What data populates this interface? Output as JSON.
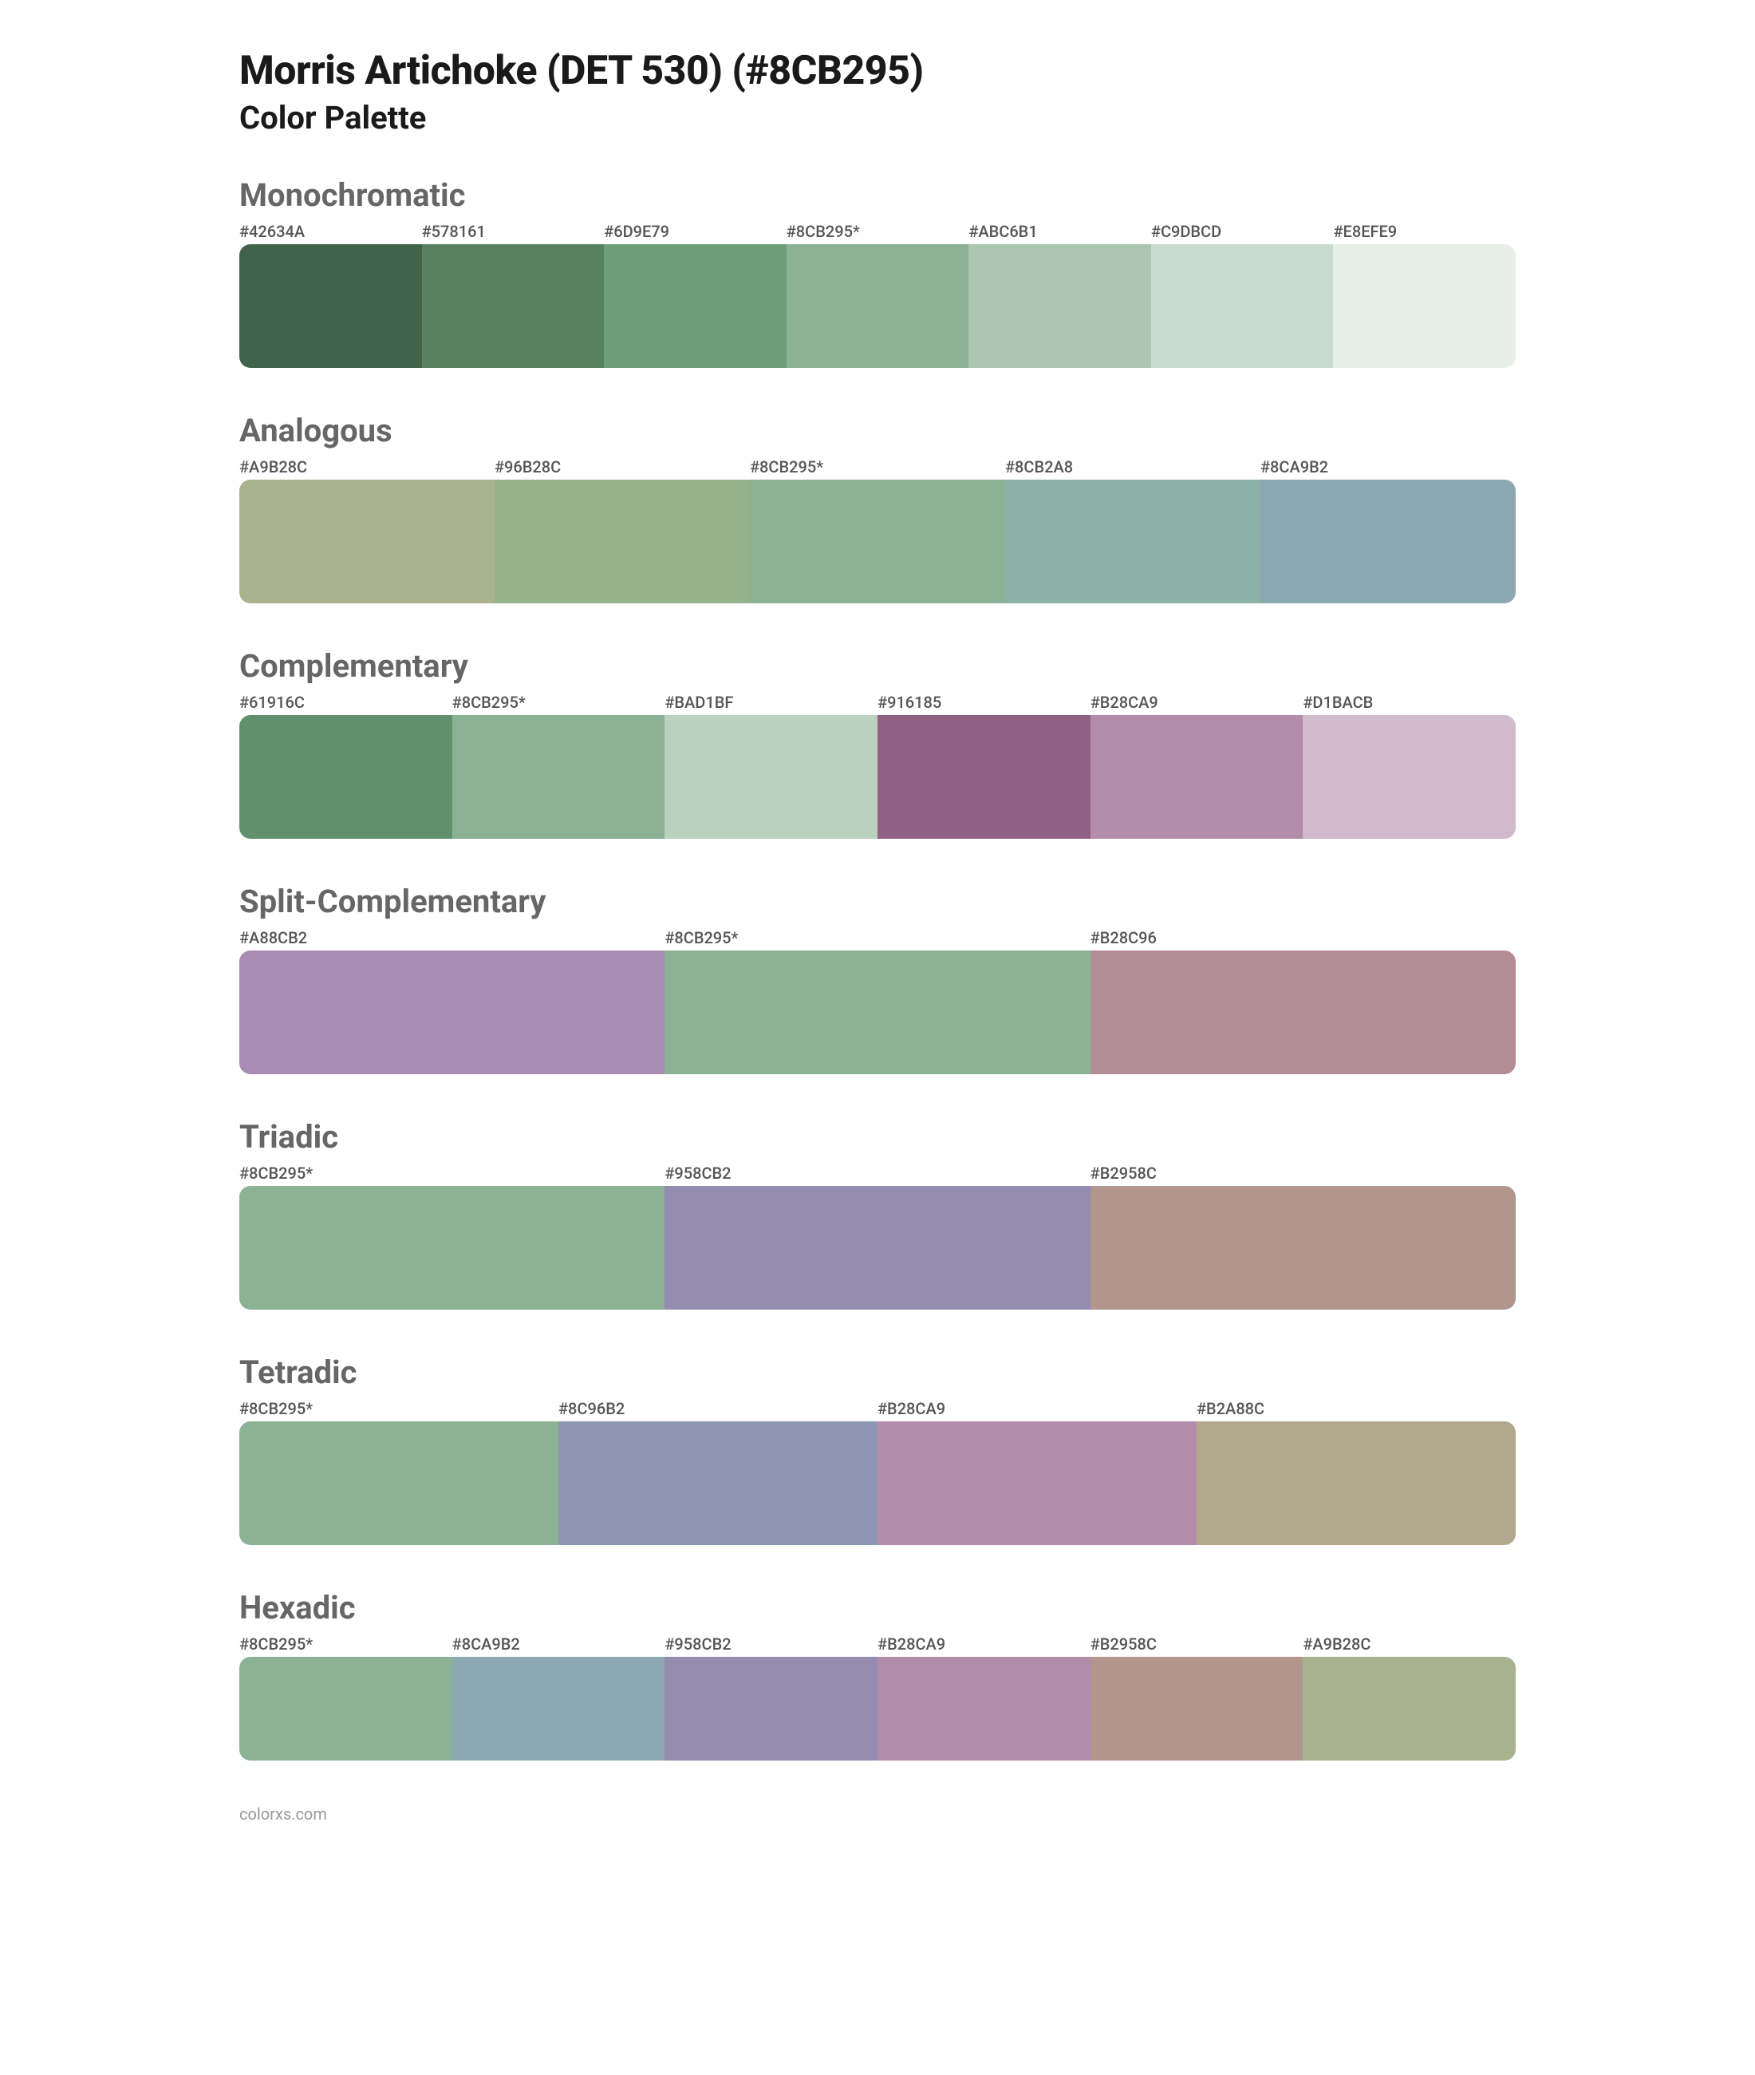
{
  "header": {
    "title": "Morris Artichoke (DET 530) (#8CB295)",
    "subtitle": "Color Palette"
  },
  "sections": [
    {
      "name": "Monochromatic",
      "swatch_height": 155,
      "colors": [
        {
          "label": "#42634A",
          "hex": "#42634A"
        },
        {
          "label": "#578161",
          "hex": "#578161"
        },
        {
          "label": "#6D9E79",
          "hex": "#6D9E79"
        },
        {
          "label": "#8CB295*",
          "hex": "#8CB295"
        },
        {
          "label": "#ABC6B1",
          "hex": "#ABC6B1"
        },
        {
          "label": "#C9DBCD",
          "hex": "#C9DBCD"
        },
        {
          "label": "#E8EFE9",
          "hex": "#E8EFE9"
        }
      ]
    },
    {
      "name": "Analogous",
      "swatch_height": 155,
      "colors": [
        {
          "label": "#A9B28C",
          "hex": "#A9B28C"
        },
        {
          "label": "#96B28C",
          "hex": "#96B28C"
        },
        {
          "label": "#8CB295*",
          "hex": "#8CB295"
        },
        {
          "label": "#8CB2A8",
          "hex": "#8CB2A8"
        },
        {
          "label": "#8CA9B2",
          "hex": "#8CA9B2"
        }
      ]
    },
    {
      "name": "Complementary",
      "swatch_height": 155,
      "colors": [
        {
          "label": "#61916C",
          "hex": "#61916C"
        },
        {
          "label": "#8CB295*",
          "hex": "#8CB295"
        },
        {
          "label": "#BAD1BF",
          "hex": "#BAD1BF"
        },
        {
          "label": "#916185",
          "hex": "#916185"
        },
        {
          "label": "#B28CA9",
          "hex": "#B28CA9"
        },
        {
          "label": "#D1BACB",
          "hex": "#D1BACB"
        }
      ]
    },
    {
      "name": "Split-Complementary",
      "swatch_height": 155,
      "colors": [
        {
          "label": "#A88CB2",
          "hex": "#A88CB2"
        },
        {
          "label": "#8CB295*",
          "hex": "#8CB295"
        },
        {
          "label": "#B28C96",
          "hex": "#B28C96"
        }
      ]
    },
    {
      "name": "Triadic",
      "swatch_height": 155,
      "colors": [
        {
          "label": "#8CB295*",
          "hex": "#8CB295"
        },
        {
          "label": "#958CB2",
          "hex": "#958CB2"
        },
        {
          "label": "#B2958C",
          "hex": "#B2958C"
        }
      ]
    },
    {
      "name": "Tetradic",
      "swatch_height": 155,
      "colors": [
        {
          "label": "#8CB295*",
          "hex": "#8CB295"
        },
        {
          "label": "#8C96B2",
          "hex": "#8C96B2"
        },
        {
          "label": "#B28CA9",
          "hex": "#B28CA9"
        },
        {
          "label": "#B2A88C",
          "hex": "#B2A88C"
        }
      ]
    },
    {
      "name": "Hexadic",
      "swatch_height": 130,
      "colors": [
        {
          "label": "#8CB295*",
          "hex": "#8CB295"
        },
        {
          "label": "#8CA9B2",
          "hex": "#8CA9B2"
        },
        {
          "label": "#958CB2",
          "hex": "#958CB2"
        },
        {
          "label": "#B28CA9",
          "hex": "#B28CA9"
        },
        {
          "label": "#B2958C",
          "hex": "#B2958C"
        },
        {
          "label": "#A9B28C",
          "hex": "#A9B28C"
        }
      ]
    }
  ],
  "footer": "colorxs.com",
  "styling": {
    "title_color": "#1a1a1a",
    "section_title_color": "#666666",
    "label_color": "#555555",
    "footer_color": "#999999",
    "background_color": "#ffffff",
    "swatch_row_radius": 14,
    "title_fontsize": 50,
    "subtitle_fontsize": 40,
    "section_title_fontsize": 40,
    "label_fontsize": 20
  }
}
